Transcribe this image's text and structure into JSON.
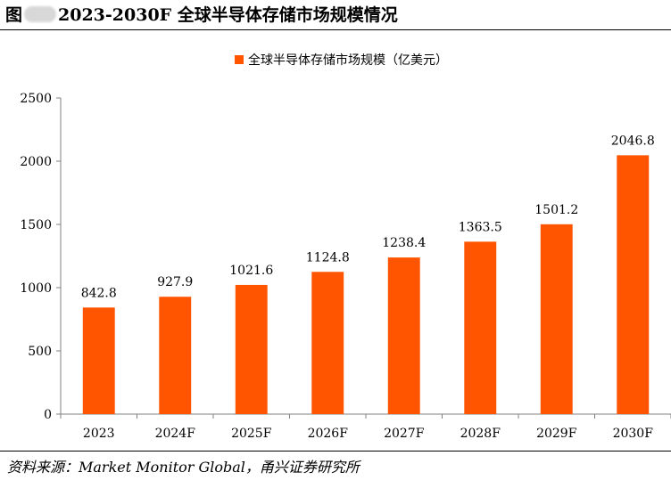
{
  "figure": {
    "prefix": "图",
    "title": "2023-2030F 全球半导体存储市场规模情况",
    "source": "资料来源：Market Monitor Global，甬兴证券研究所"
  },
  "colors": {
    "bar": "#FF5500",
    "axis": "#808080"
  },
  "chart_data": {
    "type": "bar",
    "title": "",
    "xlabel": "",
    "ylabel": "",
    "legend": {
      "position": "top-center",
      "entries": [
        "全球半导体存储市场规模（亿美元）"
      ]
    },
    "categories": [
      "2023",
      "2024F",
      "2025F",
      "2026F",
      "2027F",
      "2028F",
      "2029F",
      "2030F"
    ],
    "series": [
      {
        "name": "全球半导体存储市场规模（亿美元）",
        "values": [
          842.8,
          927.9,
          1021.6,
          1124.8,
          1238.4,
          1363.5,
          1501.2,
          2046.8
        ],
        "labels": [
          "842.8",
          "927.9",
          "1021.6",
          "1124.8",
          "1238.4",
          "1363.5",
          "1501.2",
          "2046.8"
        ]
      }
    ],
    "ylim": [
      0,
      2500
    ],
    "yticks": [
      0,
      500,
      1000,
      1500,
      2000,
      2500
    ],
    "grid": false
  }
}
